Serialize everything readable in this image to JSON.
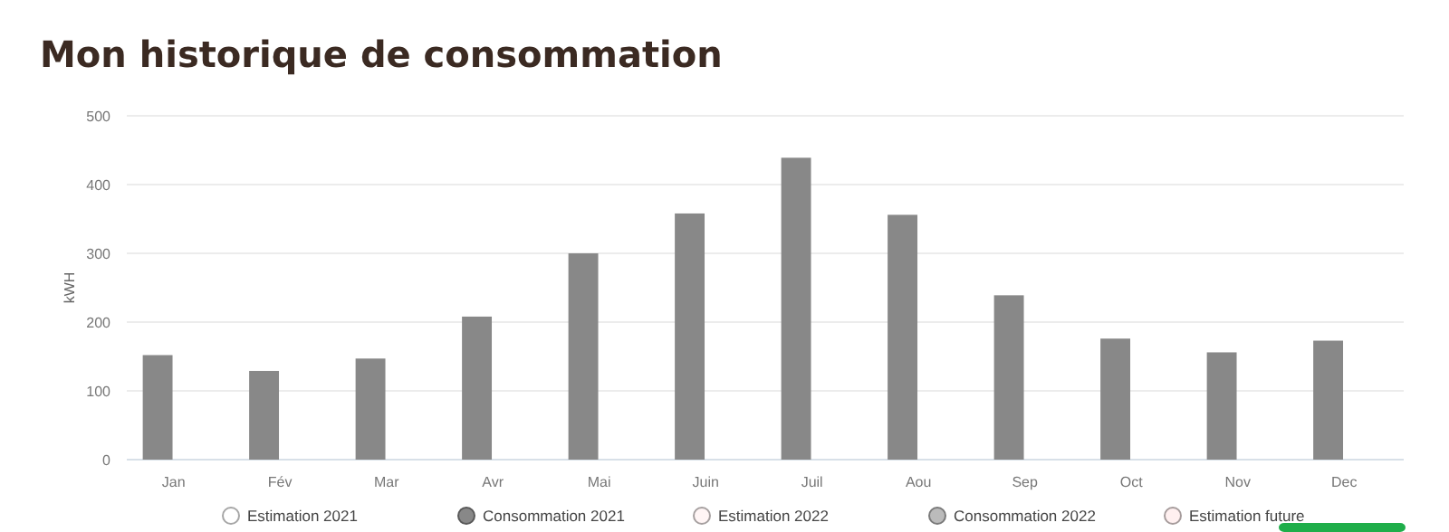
{
  "chart_data": {
    "type": "bar",
    "title": "Mon historique de consommation",
    "ylabel": "kWH",
    "categories": [
      "Jan",
      "Fév",
      "Mar",
      "Avr",
      "Mai",
      "Juin",
      "Juil",
      "Aou",
      "Sep",
      "Oct",
      "Nov",
      "Dec"
    ],
    "series": [
      {
        "name": "Estimation 2021",
        "color": "#ffffff",
        "values": [
          null,
          null,
          null,
          null,
          null,
          null,
          null,
          null,
          null,
          null,
          null,
          null
        ]
      },
      {
        "name": "Consommation 2021",
        "color": "#888888",
        "values": [
          152,
          129,
          147,
          208,
          300,
          358,
          439,
          356,
          239,
          176,
          156,
          173
        ]
      },
      {
        "name": "Estimation 2022",
        "color": "#fff5f5",
        "values": [
          null,
          null,
          null,
          null,
          null,
          null,
          null,
          null,
          null,
          null,
          null,
          null
        ]
      },
      {
        "name": "Consommation 2022",
        "color": "#bbbbbb",
        "values": [
          null,
          null,
          null,
          null,
          null,
          null,
          null,
          null,
          null,
          null,
          null,
          null
        ]
      },
      {
        "name": "Estimation future",
        "color": "#fff0f0",
        "values": [
          null,
          null,
          null,
          null,
          null,
          null,
          null,
          null,
          null,
          null,
          null,
          null
        ]
      }
    ],
    "ylim": [
      0,
      500
    ],
    "yticks": [
      0,
      100,
      200,
      300,
      400,
      500
    ],
    "grid": "y",
    "legend": "bottom"
  }
}
